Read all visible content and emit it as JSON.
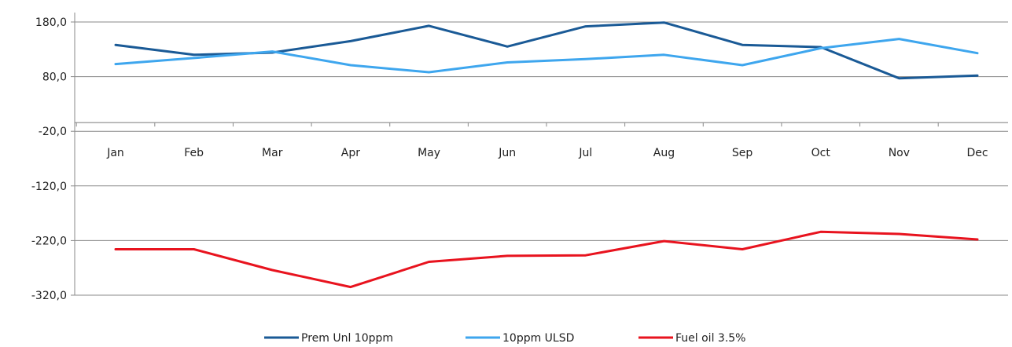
{
  "chart_data": {
    "type": "line",
    "title": "",
    "xlabel": "",
    "ylabel": "",
    "categories": [
      "Jan",
      "Feb",
      "Mar",
      "Apr",
      "May",
      "Jun",
      "Jul",
      "Aug",
      "Sep",
      "Oct",
      "Nov",
      "Dec"
    ],
    "y_ticks": [
      "180,0",
      "80,0",
      "-20,0",
      "-120,0",
      "-220,0",
      "-320,0"
    ],
    "y_tick_values": [
      180,
      80,
      -20,
      -120,
      -220,
      -320
    ],
    "ylim": [
      -320,
      180
    ],
    "grid": "horizontal",
    "legend_position": "bottom",
    "series": [
      {
        "name": "Prem Unl 10ppm",
        "color": "#1a5a96",
        "values": [
          138,
          120,
          124,
          145,
          173,
          135,
          172,
          179,
          138,
          134,
          77,
          82
        ]
      },
      {
        "name": "10ppm ULSD",
        "color": "#3ea6ee",
        "values": [
          103,
          114,
          126,
          101,
          88,
          106,
          112,
          120,
          101,
          132,
          149,
          123
        ]
      },
      {
        "name": "Fuel oil 3.5%",
        "color": "#e8131e",
        "values": [
          -236,
          -236,
          -274,
          -305,
          -259,
          -248,
          -247,
          -221,
          -236,
          -204,
          -208,
          -218
        ]
      }
    ]
  }
}
